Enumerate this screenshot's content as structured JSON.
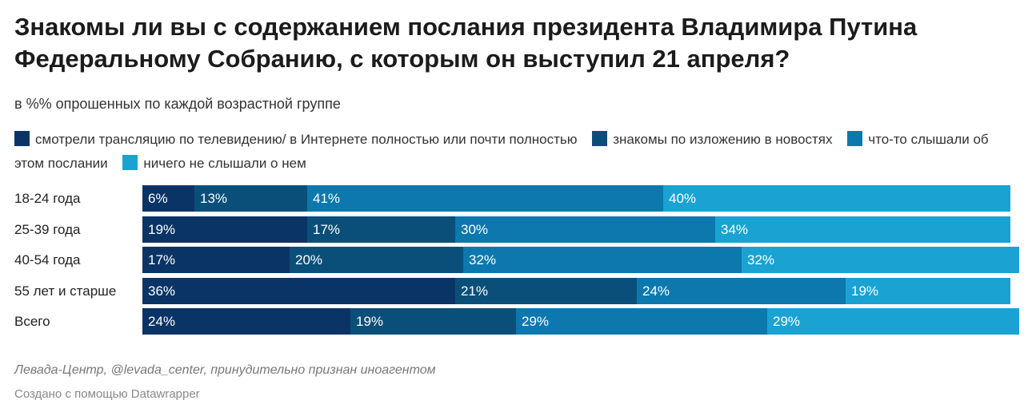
{
  "title": "Знакомы ли вы с содержанием послания президента Владимира Путина Федеральному Собранию, с которым он выступил 21 апреля?",
  "subtitle": "в %% опрошенных по каждой возрастной группе",
  "source": "Левада-Центр, @levada_center, принудительно признан иноагентом",
  "credit": "Создано с помощью Datawrapper",
  "chart_data": {
    "type": "bar",
    "orientation": "horizontal",
    "stacked": true,
    "title": "Знакомы ли вы с содержанием послания президента Владимира Путина Федеральному Собранию, с которым он выступил 21 апреля?",
    "subtitle": "в %% опрошенных по каждой возрастной группе",
    "categories": [
      "18-24 года",
      "25-39 года",
      "40-54 года",
      "55 лет и старше",
      "Всего"
    ],
    "series": [
      {
        "name": "смотрели трансляцию по телевидению/ в Интернете полностью или почти полностью",
        "color": "#0b3466",
        "values": [
          6,
          19,
          17,
          36,
          24
        ]
      },
      {
        "name": "знакомы по изложению в новостях",
        "color": "#0a4f79",
        "values": [
          13,
          17,
          20,
          21,
          19
        ]
      },
      {
        "name": "что-то слышали об этом послании",
        "color": "#0d78ad",
        "values": [
          41,
          30,
          32,
          24,
          29
        ]
      },
      {
        "name": "ничего не слышали о нем",
        "color": "#1aa3d2",
        "values": [
          40,
          34,
          32,
          19,
          29
        ]
      }
    ],
    "value_suffix": "%",
    "xlim": [
      0,
      100
    ],
    "grid": false,
    "legend_position": "top"
  }
}
